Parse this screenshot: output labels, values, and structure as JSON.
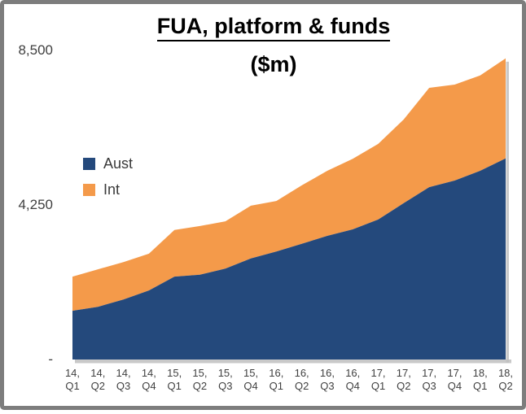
{
  "chart_data": {
    "type": "area",
    "stacked": true,
    "title": "FUA, platform & funds",
    "subtitle": "($m)",
    "unit": "$m",
    "categories": [
      "14, Q1",
      "14, Q2",
      "14, Q3",
      "14, Q4",
      "15, Q1",
      "15, Q2",
      "15, Q3",
      "15, Q4",
      "16, Q1",
      "16, Q2",
      "16, Q3",
      "16, Q4",
      "17, Q1",
      "17, Q2",
      "17, Q3",
      "17, Q4",
      "18, Q1",
      "18, Q2"
    ],
    "series": [
      {
        "name": "Aust",
        "color": "#24497C",
        "values": [
          1340,
          1450,
          1650,
          1900,
          2280,
          2330,
          2500,
          2780,
          2970,
          3180,
          3400,
          3580,
          3850,
          4300,
          4740,
          4920,
          5190,
          5530
        ]
      },
      {
        "name": "Int",
        "color": "#F49A4A",
        "values": [
          940,
          1030,
          1030,
          1010,
          1280,
          1340,
          1300,
          1450,
          1390,
          1610,
          1790,
          1940,
          2080,
          2300,
          2730,
          2640,
          2620,
          2750
        ]
      }
    ],
    "ylim": [
      0,
      8500
    ],
    "yticks": [
      {
        "value": 8500,
        "label": "8,500"
      },
      {
        "value": 4250,
        "label": "4,250"
      },
      {
        "value": 0,
        "label": "-"
      }
    ],
    "xlabel": "",
    "ylabel": "",
    "grid": false,
    "legend_position": "middle-left",
    "shadow_color": "#bfbfbf"
  }
}
